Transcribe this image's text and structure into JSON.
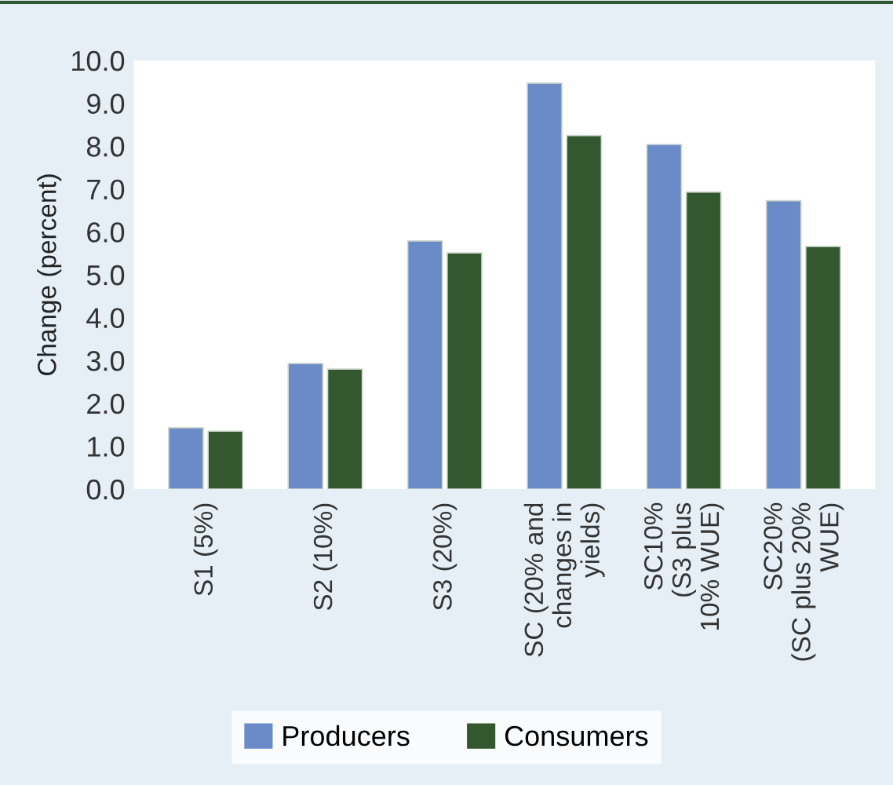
{
  "chart_data": {
    "type": "bar",
    "ylabel": "Change (percent)",
    "categories": [
      "S1 (5%)",
      "S2 (10%)",
      "S3 (20%)",
      "SC (20% and\nchanges in\nyields)",
      "SC10%\n(S3 plus\n10% WUE)",
      "SC20%\n(SC plus 20%\nWUE)"
    ],
    "series": [
      {
        "name": "Producers",
        "color": "#6a8bc8",
        "values": [
          1.43,
          2.93,
          5.79,
          9.47,
          8.04,
          6.73
        ]
      },
      {
        "name": "Consumers",
        "color": "#33572f",
        "values": [
          1.35,
          2.8,
          5.51,
          8.25,
          6.93,
          5.66
        ]
      }
    ],
    "ylim": [
      0,
      10
    ],
    "yticks": [
      {
        "value": 0,
        "label": "0.0"
      },
      {
        "value": 1,
        "label": "1.0"
      },
      {
        "value": 2,
        "label": "2.0"
      },
      {
        "value": 3,
        "label": "3.0"
      },
      {
        "value": 4,
        "label": "4.0"
      },
      {
        "value": 5,
        "label": "5.0"
      },
      {
        "value": 6,
        "label": "6.0"
      },
      {
        "value": 7,
        "label": "7.0"
      },
      {
        "value": 8,
        "label": "8.0"
      },
      {
        "value": 9,
        "label": "9.0"
      },
      {
        "value": 10,
        "label": "10.0"
      }
    ],
    "grid": false,
    "legend": "bottom"
  }
}
